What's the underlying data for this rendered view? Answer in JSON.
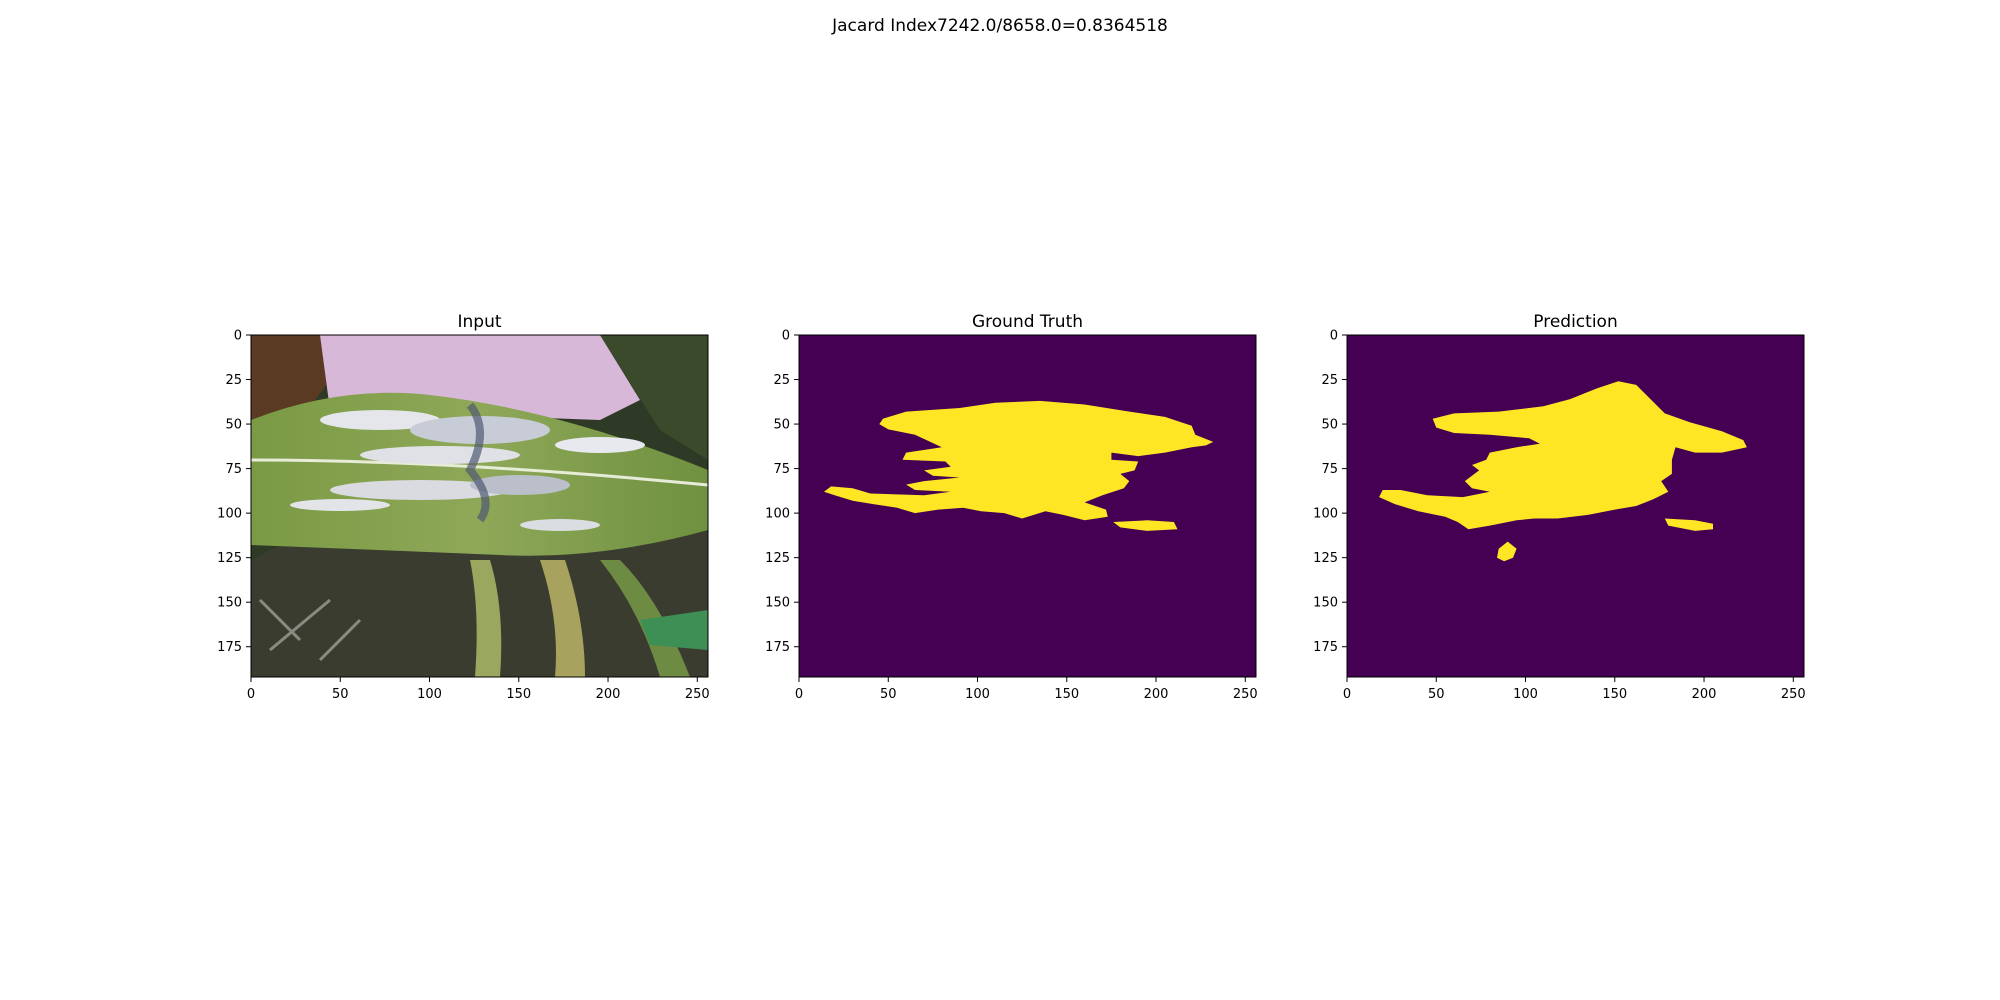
{
  "suptitle": "Jacard Index7242.0/8658.0=0.8364518",
  "chart_data": [
    {
      "type": "heatmap",
      "title": "Input",
      "image": "photo of a maize leaf with grey-white lesions over a green field background",
      "xlim": [
        0,
        256
      ],
      "ylim": [
        192,
        0
      ],
      "xticks": [
        0,
        50,
        100,
        150,
        200,
        250
      ],
      "yticks": [
        0,
        25,
        50,
        75,
        100,
        125,
        150,
        175
      ]
    },
    {
      "type": "heatmap",
      "title": "Ground Truth",
      "colormap": "viridis",
      "background_color": "#440154",
      "foreground_color": "#fde725",
      "xlim": [
        0,
        256
      ],
      "ylim": [
        192,
        0
      ],
      "xticks": [
        0,
        50,
        100,
        150,
        200,
        250
      ],
      "yticks": [
        0,
        25,
        50,
        75,
        100,
        125,
        150,
        175
      ],
      "regions": [
        [
          [
            47,
            47
          ],
          [
            60,
            43
          ],
          [
            90,
            41
          ],
          [
            110,
            38
          ],
          [
            135,
            37
          ],
          [
            160,
            39
          ],
          [
            185,
            43
          ],
          [
            205,
            46
          ],
          [
            220,
            51
          ],
          [
            222,
            56
          ],
          [
            232,
            60
          ],
          [
            228,
            62
          ],
          [
            220,
            63
          ],
          [
            205,
            66
          ],
          [
            190,
            68
          ],
          [
            175,
            66
          ],
          [
            175,
            70
          ],
          [
            190,
            71
          ],
          [
            188,
            76
          ],
          [
            180,
            78
          ],
          [
            185,
            82
          ],
          [
            182,
            86
          ],
          [
            170,
            90
          ],
          [
            160,
            94
          ],
          [
            172,
            98
          ],
          [
            173,
            102
          ],
          [
            160,
            104
          ],
          [
            148,
            101
          ],
          [
            138,
            99
          ],
          [
            125,
            103
          ],
          [
            115,
            100
          ],
          [
            102,
            99
          ],
          [
            92,
            97
          ],
          [
            78,
            98
          ],
          [
            65,
            100
          ],
          [
            55,
            97
          ],
          [
            42,
            95
          ],
          [
            30,
            93
          ],
          [
            20,
            90
          ],
          [
            14,
            88
          ],
          [
            18,
            85
          ],
          [
            30,
            86
          ],
          [
            40,
            89
          ],
          [
            70,
            90
          ],
          [
            85,
            88
          ],
          [
            65,
            87
          ],
          [
            60,
            84
          ],
          [
            70,
            82
          ],
          [
            90,
            80
          ],
          [
            75,
            79
          ],
          [
            70,
            76
          ],
          [
            85,
            74
          ],
          [
            82,
            71
          ],
          [
            58,
            70
          ],
          [
            60,
            66
          ],
          [
            80,
            63
          ],
          [
            65,
            56
          ],
          [
            50,
            53
          ],
          [
            45,
            50
          ]
        ],
        [
          [
            176,
            105
          ],
          [
            195,
            104
          ],
          [
            210,
            105
          ],
          [
            212,
            109
          ],
          [
            195,
            110
          ],
          [
            180,
            108
          ]
        ]
      ]
    },
    {
      "type": "heatmap",
      "title": "Prediction",
      "colormap": "viridis",
      "background_color": "#440154",
      "foreground_color": "#fde725",
      "xlim": [
        0,
        256
      ],
      "ylim": [
        192,
        0
      ],
      "xticks": [
        0,
        50,
        100,
        150,
        200,
        250
      ],
      "yticks": [
        0,
        25,
        50,
        75,
        100,
        125,
        150,
        175
      ],
      "regions": [
        [
          [
            48,
            47
          ],
          [
            60,
            44
          ],
          [
            85,
            43
          ],
          [
            110,
            40
          ],
          [
            125,
            36
          ],
          [
            140,
            30
          ],
          [
            152,
            26
          ],
          [
            162,
            28
          ],
          [
            170,
            36
          ],
          [
            178,
            44
          ],
          [
            192,
            49
          ],
          [
            210,
            54
          ],
          [
            222,
            59
          ],
          [
            224,
            63
          ],
          [
            210,
            66
          ],
          [
            195,
            66
          ],
          [
            184,
            63
          ],
          [
            182,
            70
          ],
          [
            182,
            78
          ],
          [
            176,
            82
          ],
          [
            180,
            88
          ],
          [
            172,
            92
          ],
          [
            162,
            96
          ],
          [
            150,
            98
          ],
          [
            135,
            101
          ],
          [
            118,
            103
          ],
          [
            105,
            103
          ],
          [
            95,
            104
          ],
          [
            80,
            107
          ],
          [
            68,
            109
          ],
          [
            62,
            105
          ],
          [
            55,
            102
          ],
          [
            40,
            99
          ],
          [
            27,
            95
          ],
          [
            18,
            91
          ],
          [
            20,
            87
          ],
          [
            30,
            87
          ],
          [
            45,
            90
          ],
          [
            65,
            91
          ],
          [
            80,
            88
          ],
          [
            70,
            86
          ],
          [
            66,
            82
          ],
          [
            74,
            76
          ],
          [
            70,
            73
          ],
          [
            78,
            70
          ],
          [
            80,
            66
          ],
          [
            95,
            63
          ],
          [
            108,
            61
          ],
          [
            102,
            58
          ],
          [
            80,
            56
          ],
          [
            60,
            55
          ],
          [
            50,
            52
          ]
        ],
        [
          [
            85,
            120
          ],
          [
            90,
            116
          ],
          [
            95,
            120
          ],
          [
            93,
            125
          ],
          [
            88,
            127
          ],
          [
            84,
            125
          ]
        ],
        [
          [
            178,
            103
          ],
          [
            195,
            104
          ],
          [
            205,
            106
          ],
          [
            205,
            109
          ],
          [
            195,
            110
          ],
          [
            180,
            107
          ]
        ]
      ]
    }
  ]
}
